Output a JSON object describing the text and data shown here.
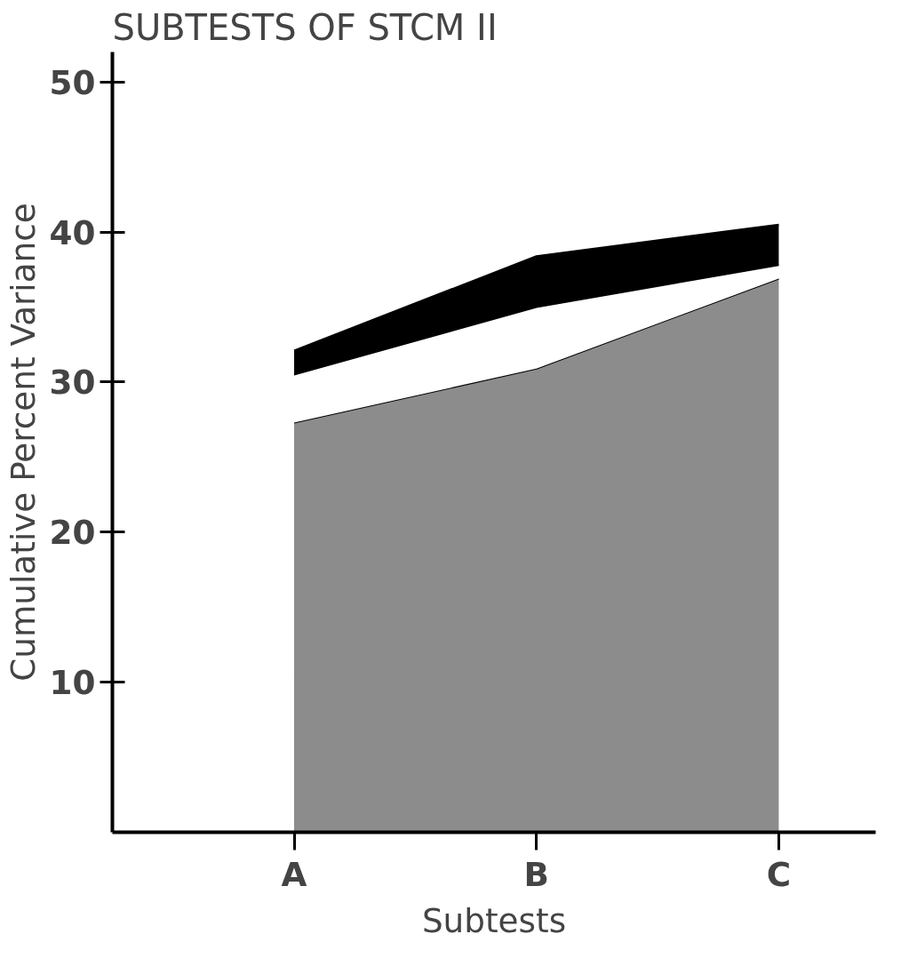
{
  "chart_data": {
    "type": "area",
    "title": "SUBTESTS OF STCM II",
    "xlabel": "Subtests",
    "ylabel": "Cumulative Percent Variance",
    "categories": [
      "A",
      "B",
      "C"
    ],
    "stacked": true,
    "series": [
      {
        "color": "#8c8c8c",
        "values": [
          27.3,
          30.9,
          36.9
        ]
      },
      {
        "color": "#ffffff",
        "values": [
          3.2,
          4.1,
          0.9
        ]
      },
      {
        "color": "#000000",
        "values": [
          1.6,
          3.4,
          2.7
        ]
      }
    ],
    "ylim": [
      0,
      52
    ],
    "yticks": [
      10,
      20,
      30,
      40,
      50
    ],
    "grid": false
  }
}
